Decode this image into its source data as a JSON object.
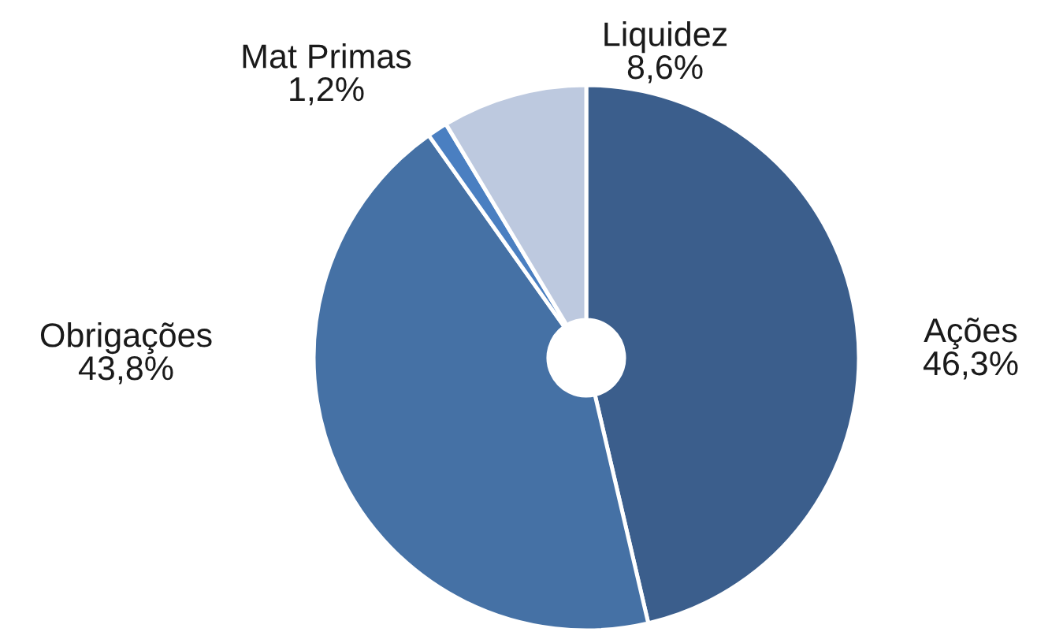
{
  "chart_data": {
    "type": "donut",
    "categories": [
      "Ações",
      "Obrigações",
      "Mat Primas",
      "Liquidez"
    ],
    "values": [
      46.3,
      43.8,
      1.2,
      8.6
    ],
    "colors": [
      "#3b5e8c",
      "#4571a5",
      "#4a7fc1",
      "#bdc9df"
    ],
    "value_labels": [
      "46,3%",
      "43,8%",
      "1,2%",
      "8,6%"
    ]
  }
}
